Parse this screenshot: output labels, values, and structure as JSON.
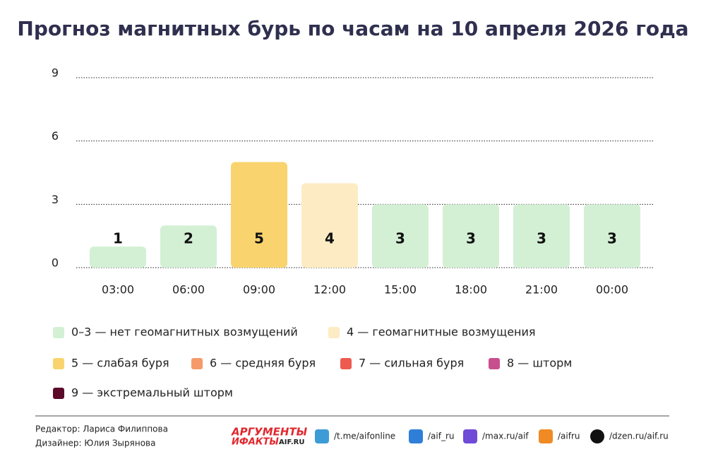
{
  "chart_data": {
    "type": "bar",
    "title": "Прогноз магнитных бурь по часам на 10 апреля 2026 года",
    "categories": [
      "03:00",
      "06:00",
      "09:00",
      "12:00",
      "15:00",
      "18:00",
      "21:00",
      "00:00"
    ],
    "values": [
      1,
      2,
      5,
      4,
      3,
      3,
      3,
      3
    ],
    "colors": [
      "#d3f0d5",
      "#d3f0d5",
      "#f9d46e",
      "#fdebc3",
      "#d3f0d5",
      "#d3f0d5",
      "#d3f0d5",
      "#d3f0d5"
    ],
    "ylim": [
      0,
      9
    ],
    "yticks": [
      0,
      3,
      6,
      9
    ],
    "grid": true,
    "legend": [
      {
        "label": "0–3 — нет геомагнитных возмущений",
        "color": "#d3f0d5"
      },
      {
        "label": "4 — геомагнитные возмущения",
        "color": "#fdebc3"
      },
      {
        "label": "5 — слабая буря",
        "color": "#f9d46e"
      },
      {
        "label": "6 — средняя буря",
        "color": "#f59a6b"
      },
      {
        "label": "7 — сильная буря",
        "color": "#ee5a4f"
      },
      {
        "label": "8 — шторм",
        "color": "#c84f8e"
      },
      {
        "label": "9 — экстремальный шторм",
        "color": "#5c0a2a"
      }
    ]
  },
  "footer": {
    "editor": "Редактор: Лариса Филиппова",
    "designer": "Дизайнер: Юлия Зырянова",
    "logo_top": "АРГУМЕНТЫ",
    "logo_bottom": "ИФАКТЫ",
    "logo_site": "AIF.RU",
    "links": [
      "/t.me/aifonline",
      "/aif_ru",
      "/max.ru/aif",
      "/aifru",
      "/dzen.ru/aif.ru"
    ]
  }
}
